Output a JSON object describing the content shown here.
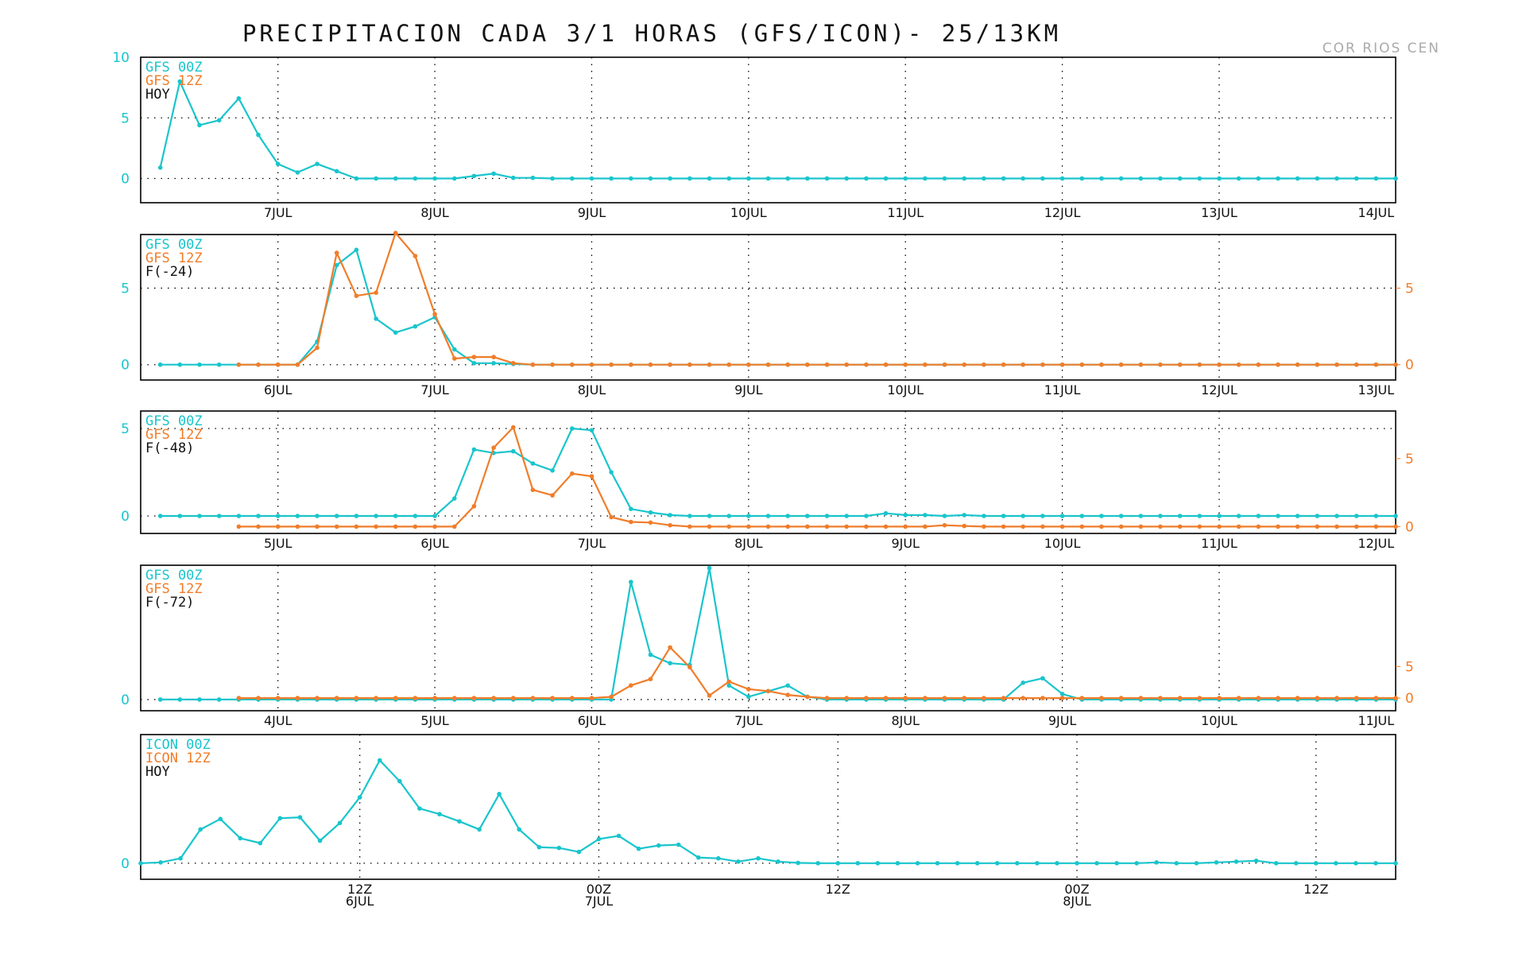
{
  "title": "PRECIPITACION CADA 3/1 HORAS (GFS/ICON)- 25/13KM",
  "credit": "COR RIOS CEN",
  "colors": {
    "cyan": "#19c5cc",
    "orange": "#f07d2a",
    "black": "#111111"
  },
  "chart_data": [
    {
      "type": "line",
      "legend": [
        "GFS 00Z",
        "GFS 12Z",
        "HOY"
      ],
      "x": {
        "min": 0,
        "max": 64,
        "labels": [
          {
            "at": 7,
            "lines": [
              "7JUL"
            ]
          },
          {
            "at": 15,
            "lines": [
              "8JUL"
            ]
          },
          {
            "at": 23,
            "lines": [
              "9JUL"
            ]
          },
          {
            "at": 31,
            "lines": [
              "10JUL"
            ]
          },
          {
            "at": 39,
            "lines": [
              "11JUL"
            ]
          },
          {
            "at": 47,
            "lines": [
              "12JUL"
            ]
          },
          {
            "at": 55,
            "lines": [
              "13JUL"
            ]
          },
          {
            "at": 63,
            "lines": [
              "14JUL"
            ]
          }
        ]
      },
      "vgrid": [
        7,
        15,
        23,
        31,
        39,
        47,
        55
      ],
      "left_axis": {
        "min": -2,
        "max": 10,
        "ticks": [
          0,
          5,
          10
        ],
        "hgrid": [
          0,
          5
        ]
      },
      "right_axis": null,
      "series": [
        {
          "name": "GFS 00Z",
          "color": "cyan",
          "axis": "left",
          "x_start": 1,
          "values": [
            0.9,
            8.0,
            4.4,
            4.8,
            6.6,
            3.6,
            1.2,
            0.5,
            1.2,
            0.6,
            0.0,
            0.0,
            0.0,
            0.0,
            0.0,
            0.0,
            0.2,
            0.4,
            0.05,
            0.05,
            0.0,
            0.0,
            0.0,
            0.0,
            0.0,
            0.0,
            0.0,
            0.0,
            0.0,
            0.0,
            0.0,
            0.0,
            0.0,
            0.0,
            0.0,
            0.0,
            0.0,
            0.0,
            0.0,
            0.0,
            0.0,
            0.0,
            0.0,
            0.0,
            0.0,
            0.0,
            0.0,
            0.0,
            0.0,
            0.0,
            0.0,
            0.0,
            0.0,
            0.0,
            0.0,
            0.0,
            0.0,
            0.0,
            0.0,
            0.0,
            0.0,
            0.0,
            0.0,
            0.0
          ]
        }
      ]
    },
    {
      "type": "line",
      "legend": [
        "GFS 00Z",
        "GFS 12Z",
        "F(-24)"
      ],
      "x": {
        "min": 0,
        "max": 64,
        "labels": [
          {
            "at": 7,
            "lines": [
              "6JUL"
            ]
          },
          {
            "at": 15,
            "lines": [
              "7JUL"
            ]
          },
          {
            "at": 23,
            "lines": [
              "8JUL"
            ]
          },
          {
            "at": 31,
            "lines": [
              "9JUL"
            ]
          },
          {
            "at": 39,
            "lines": [
              "10JUL"
            ]
          },
          {
            "at": 47,
            "lines": [
              "11JUL"
            ]
          },
          {
            "at": 55,
            "lines": [
              "12JUL"
            ]
          },
          {
            "at": 63,
            "lines": [
              "13JUL"
            ]
          }
        ]
      },
      "vgrid": [
        7,
        15,
        23,
        31,
        39,
        47,
        55
      ],
      "left_axis": {
        "min": -1,
        "max": 8.5,
        "ticks": [
          0,
          5
        ],
        "hgrid": [
          0,
          5
        ]
      },
      "right_axis": {
        "min": -1,
        "max": 8.5,
        "ticks": [
          0,
          5
        ]
      },
      "series": [
        {
          "name": "GFS 00Z",
          "color": "cyan",
          "axis": "left",
          "x_start": 1,
          "values": [
            0,
            0,
            0,
            0,
            0,
            0,
            0,
            0,
            1.5,
            6.5,
            7.5,
            3.0,
            2.1,
            2.5,
            3.1,
            1.0,
            0.1,
            0.1,
            0.05,
            0,
            0,
            0,
            0,
            0,
            0,
            0,
            0,
            0,
            0,
            0,
            0,
            0,
            0,
            0,
            0,
            0,
            0,
            0,
            0,
            0,
            0,
            0,
            0,
            0,
            0,
            0,
            0,
            0,
            0,
            0,
            0,
            0,
            0,
            0,
            0,
            0,
            0,
            0,
            0,
            0,
            0,
            0,
            0,
            0
          ]
        },
        {
          "name": "GFS 12Z",
          "color": "orange",
          "axis": "right",
          "x_start": 5,
          "values": [
            0,
            0,
            0,
            0,
            1.1,
            7.3,
            4.5,
            4.7,
            8.6,
            7.1,
            3.3,
            0.4,
            0.5,
            0.5,
            0.1,
            0,
            0,
            0,
            0,
            0,
            0,
            0,
            0,
            0,
            0,
            0,
            0,
            0,
            0,
            0,
            0,
            0,
            0,
            0,
            0,
            0,
            0,
            0,
            0,
            0,
            0,
            0,
            0,
            0,
            0,
            0,
            0,
            0,
            0,
            0,
            0,
            0,
            0,
            0,
            0,
            0,
            0,
            0,
            0,
            0
          ]
        }
      ]
    },
    {
      "type": "line",
      "legend": [
        "GFS 00Z",
        "GFS 12Z",
        "F(-48)"
      ],
      "x": {
        "min": 0,
        "max": 64,
        "labels": [
          {
            "at": 7,
            "lines": [
              "5JUL"
            ]
          },
          {
            "at": 15,
            "lines": [
              "6JUL"
            ]
          },
          {
            "at": 23,
            "lines": [
              "7JUL"
            ]
          },
          {
            "at": 31,
            "lines": [
              "8JUL"
            ]
          },
          {
            "at": 39,
            "lines": [
              "9JUL"
            ]
          },
          {
            "at": 47,
            "lines": [
              "10JUL"
            ]
          },
          {
            "at": 55,
            "lines": [
              "11JUL"
            ]
          },
          {
            "at": 63,
            "lines": [
              "12JUL"
            ]
          }
        ]
      },
      "vgrid": [
        7,
        15,
        23,
        31,
        39,
        47,
        55
      ],
      "left_axis": {
        "min": -1,
        "max": 6,
        "ticks": [
          0,
          5
        ],
        "hgrid": [
          0,
          5
        ]
      },
      "right_axis": {
        "min": -0.5,
        "max": 8.5,
        "ticks": [
          0,
          5
        ]
      },
      "series": [
        {
          "name": "GFS 00Z",
          "color": "cyan",
          "axis": "left",
          "x_start": 1,
          "values": [
            0,
            0,
            0,
            0,
            0,
            0,
            0,
            0,
            0,
            0,
            0,
            0,
            0,
            0,
            0,
            1.0,
            3.8,
            3.6,
            3.7,
            3.0,
            2.6,
            5.0,
            4.9,
            2.5,
            0.4,
            0.2,
            0.05,
            0,
            0,
            0,
            0,
            0,
            0,
            0,
            0,
            0,
            0,
            0.15,
            0.05,
            0.05,
            0,
            0.05,
            0,
            0,
            0,
            0,
            0,
            0,
            0,
            0,
            0,
            0,
            0,
            0,
            0,
            0,
            0,
            0,
            0,
            0,
            0,
            0,
            0,
            0
          ]
        },
        {
          "name": "GFS 12Z",
          "color": "orange",
          "axis": "right",
          "x_start": 5,
          "values": [
            0,
            0,
            0,
            0,
            0,
            0,
            0,
            0,
            0,
            0,
            0,
            0,
            1.5,
            5.8,
            7.3,
            2.7,
            2.3,
            3.9,
            3.7,
            0.7,
            0.35,
            0.3,
            0.1,
            0,
            0,
            0,
            0,
            0,
            0,
            0,
            0,
            0,
            0,
            0,
            0,
            0,
            0.1,
            0.05,
            0,
            0,
            0,
            0,
            0,
            0,
            0,
            0,
            0,
            0,
            0,
            0,
            0,
            0,
            0,
            0,
            0,
            0,
            0,
            0,
            0,
            0
          ]
        }
      ]
    },
    {
      "type": "line",
      "legend": [
        "GFS 00Z",
        "GFS 12Z",
        "F(-72)"
      ],
      "x": {
        "min": 0,
        "max": 64,
        "labels": [
          {
            "at": 7,
            "lines": [
              "4JUL"
            ]
          },
          {
            "at": 15,
            "lines": [
              "5JUL"
            ]
          },
          {
            "at": 23,
            "lines": [
              "6JUL"
            ]
          },
          {
            "at": 31,
            "lines": [
              "7JUL"
            ]
          },
          {
            "at": 39,
            "lines": [
              "8JUL"
            ]
          },
          {
            "at": 47,
            "lines": [
              "9JUL"
            ]
          },
          {
            "at": 55,
            "lines": [
              "10JUL"
            ]
          },
          {
            "at": 63,
            "lines": [
              "11JUL"
            ]
          }
        ]
      },
      "vgrid": [
        7,
        15,
        23,
        31,
        39,
        47,
        55
      ],
      "left_axis": {
        "min": -2,
        "max": 24,
        "ticks": [
          0
        ],
        "hgrid": [
          0
        ]
      },
      "right_axis": {
        "min": -2,
        "max": 21,
        "ticks": [
          0,
          5
        ]
      },
      "series": [
        {
          "name": "GFS 00Z",
          "color": "cyan",
          "axis": "left",
          "x_start": 1,
          "values": [
            0,
            0,
            0,
            0,
            0,
            0,
            0,
            0,
            0,
            0,
            0,
            0,
            0,
            0,
            0,
            0,
            0,
            0,
            0,
            0,
            0,
            0,
            0,
            0,
            21,
            8,
            6.5,
            6.2,
            23.5,
            2.5,
            0.5,
            1.5,
            2.5,
            0.5,
            0,
            0,
            0,
            0,
            0,
            0,
            0,
            0,
            0,
            0,
            3,
            3.8,
            1.0,
            0,
            0,
            0,
            0,
            0,
            0,
            0,
            0,
            0,
            0,
            0,
            0,
            0,
            0,
            0,
            0,
            0
          ]
        },
        {
          "name": "GFS 12Z",
          "color": "orange",
          "axis": "right",
          "x_start": 5,
          "values": [
            0,
            0,
            0,
            0,
            0,
            0,
            0,
            0,
            0,
            0,
            0,
            0,
            0,
            0,
            0,
            0,
            0,
            0,
            0,
            0.2,
            2.0,
            3.0,
            8.0,
            4.9,
            0.4,
            2.6,
            1.4,
            1.1,
            0.5,
            0.2,
            0,
            0,
            0,
            0,
            0,
            0,
            0,
            0,
            0,
            0,
            0,
            0,
            0,
            0,
            0,
            0,
            0,
            0,
            0,
            0,
            0,
            0,
            0,
            0,
            0,
            0,
            0,
            0,
            0,
            0
          ]
        }
      ]
    },
    {
      "type": "line",
      "legend": [
        "ICON 00Z",
        "ICON 12Z",
        "HOY"
      ],
      "x": {
        "min": 0,
        "max": 63,
        "labels": [
          {
            "at": 11,
            "lines": [
              "12Z",
              "6JUL"
            ]
          },
          {
            "at": 23,
            "lines": [
              "00Z",
              "7JUL"
            ]
          },
          {
            "at": 35,
            "lines": [
              "12Z"
            ]
          },
          {
            "at": 47,
            "lines": [
              "00Z",
              "8JUL"
            ]
          },
          {
            "at": 59,
            "lines": [
              "12Z"
            ]
          }
        ]
      },
      "vgrid": [
        11,
        23,
        35,
        47,
        59
      ],
      "left_axis": {
        "min": -1,
        "max": 8,
        "ticks": [
          0
        ],
        "hgrid": [
          0
        ]
      },
      "right_axis": null,
      "series": [
        {
          "name": "ICON 00Z",
          "color": "cyan",
          "axis": "left",
          "x_start": 0,
          "values": [
            0,
            0.05,
            0.3,
            2.1,
            2.75,
            1.55,
            1.25,
            2.8,
            2.85,
            1.4,
            2.5,
            4.1,
            6.4,
            5.1,
            3.4,
            3.05,
            2.6,
            2.1,
            4.3,
            2.1,
            1.0,
            0.95,
            0.7,
            1.5,
            1.7,
            0.9,
            1.1,
            1.15,
            0.35,
            0.3,
            0.1,
            0.3,
            0.1,
            0.02,
            0,
            0,
            0,
            0,
            0,
            0,
            0,
            0,
            0,
            0,
            0,
            0,
            0,
            0,
            0,
            0,
            0,
            0.05,
            0,
            0,
            0.05,
            0.1,
            0.15,
            0,
            0,
            0,
            0,
            0,
            0,
            0
          ]
        }
      ]
    }
  ]
}
